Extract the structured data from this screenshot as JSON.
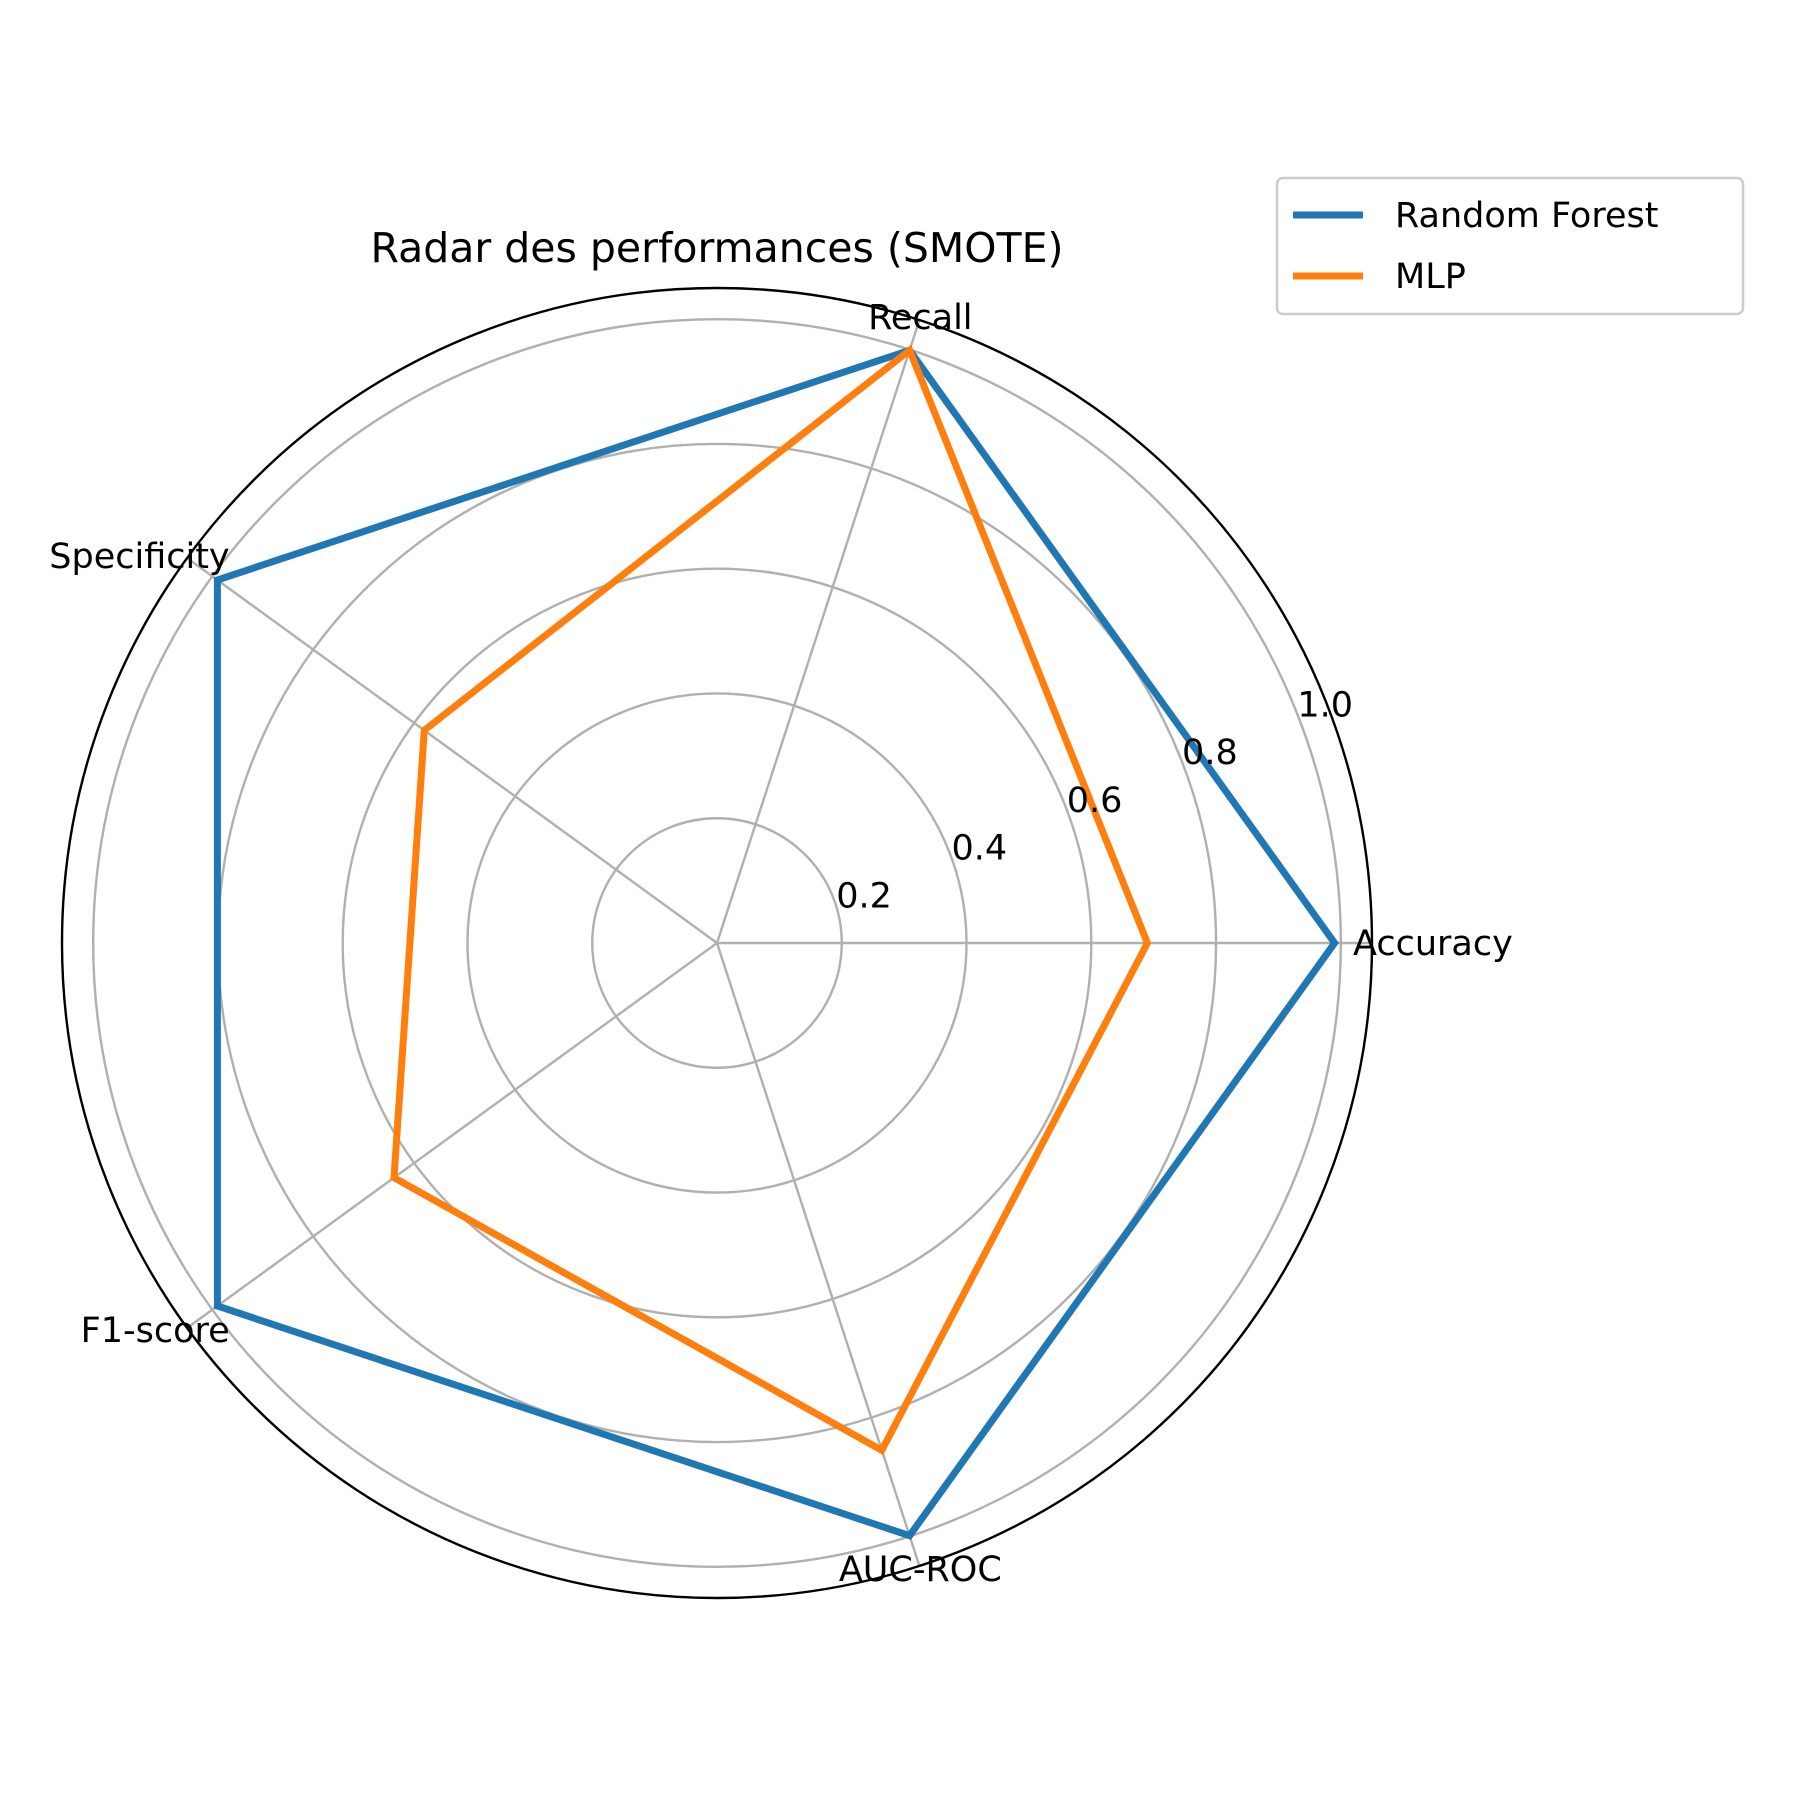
{
  "chart_data": {
    "type": "radar",
    "title": "Radar des performances (SMOTE)",
    "categories": [
      "Accuracy",
      "Recall",
      "Specificity",
      "F1-score",
      "AUC-ROC"
    ],
    "rlim": [
      0,
      1.05
    ],
    "r_ticks": [
      0.2,
      0.4,
      0.6,
      0.8,
      1.0
    ],
    "r_tick_labels": [
      "0.2",
      "0.4",
      "0.6",
      "0.8",
      "1.0"
    ],
    "grid": true,
    "legend_position": "top-right",
    "series": [
      {
        "name": "Random Forest",
        "color": "#1f77b4",
        "values": [
          0.99,
          0.999,
          0.99,
          0.99,
          0.999
        ]
      },
      {
        "name": "MLP",
        "color": "#ff7f0e",
        "values": [
          0.69,
          0.999,
          0.58,
          0.64,
          0.855
        ]
      }
    ]
  }
}
